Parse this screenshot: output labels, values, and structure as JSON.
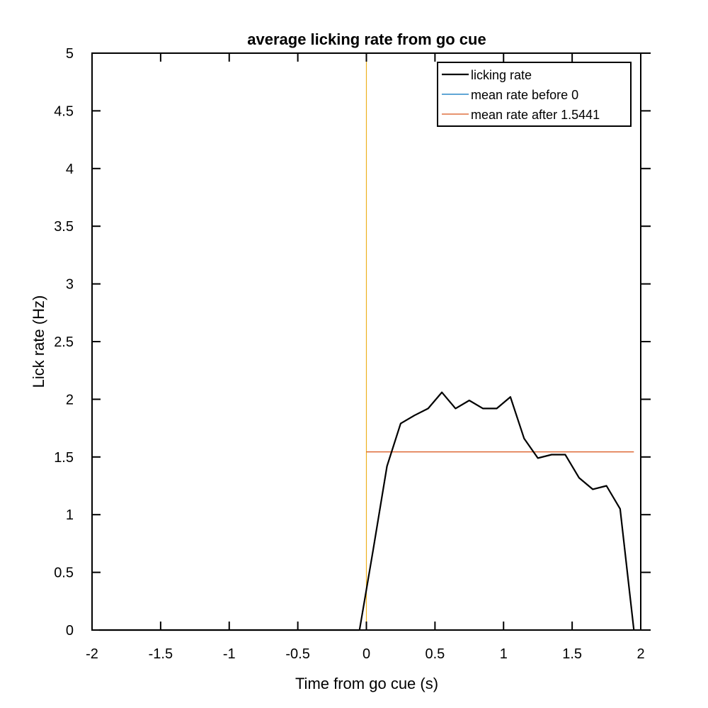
{
  "chart_data": {
    "type": "line",
    "title": "average licking rate from go cue",
    "xlabel": "Time from go cue (s)",
    "ylabel": "Lick rate (Hz)",
    "xlim": [
      -2,
      2
    ],
    "ylim": [
      0,
      5
    ],
    "xticks": [
      "-2",
      "-1.5",
      "-1",
      "-0.5",
      "0",
      "0.5",
      "1",
      "1.5",
      "2"
    ],
    "yticks": [
      "0",
      "0.5",
      "1",
      "1.5",
      "2",
      "2.5",
      "3",
      "3.5",
      "4",
      "4.5",
      "5"
    ],
    "grid": false,
    "legend_position": "top-right",
    "series": [
      {
        "name": "licking rate",
        "color": "#000000",
        "x": [
          -1.95,
          -1.85,
          -1.75,
          -1.65,
          -1.55,
          -1.45,
          -1.35,
          -1.25,
          -1.15,
          -1.05,
          -0.95,
          -0.85,
          -0.75,
          -0.65,
          -0.55,
          -0.45,
          -0.35,
          -0.25,
          -0.15,
          -0.05,
          0.05,
          0.15,
          0.25,
          0.35,
          0.45,
          0.55,
          0.65,
          0.75,
          0.85,
          0.95,
          1.05,
          1.15,
          1.25,
          1.35,
          1.45,
          1.55,
          1.65,
          1.75,
          1.85,
          1.95
        ],
        "y": [
          0,
          0,
          0,
          0,
          0,
          0,
          0,
          0,
          0,
          0,
          0,
          0,
          0,
          0,
          0,
          0,
          0,
          0,
          0,
          0,
          0.7,
          1.42,
          1.79,
          1.86,
          1.92,
          2.06,
          1.92,
          1.99,
          1.92,
          1.92,
          2.02,
          1.66,
          1.49,
          1.52,
          1.52,
          1.32,
          1.22,
          1.25,
          1.05,
          0
        ]
      },
      {
        "name": "mean rate before 0",
        "color": "#0072BD",
        "x": [
          -1.95,
          -0.05
        ],
        "y": [
          0,
          0
        ]
      },
      {
        "name": "mean rate after 1.5441",
        "color": "#D95319",
        "x": [
          0,
          1.95
        ],
        "y": [
          1.5441,
          1.5441
        ]
      }
    ],
    "vline": {
      "x": 0,
      "color": "#EDB120"
    }
  }
}
